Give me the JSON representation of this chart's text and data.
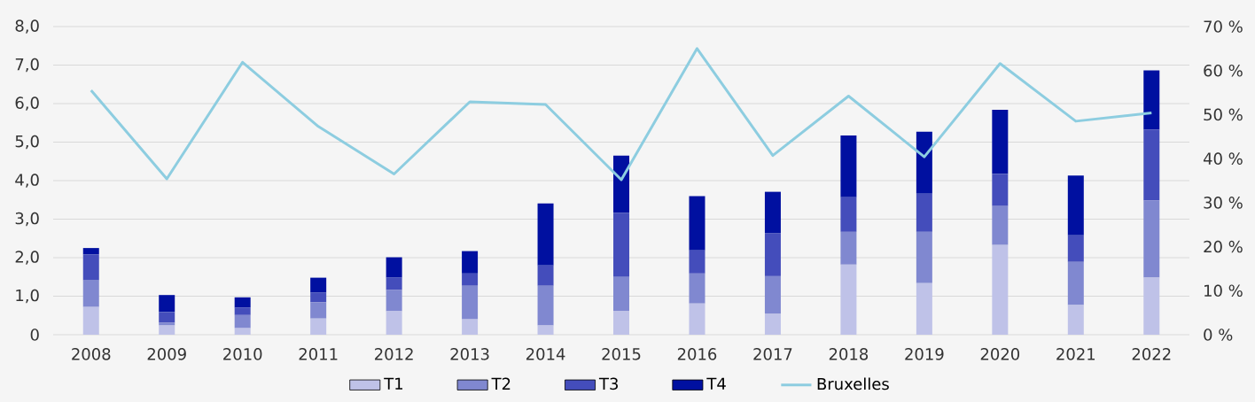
{
  "chart_data": {
    "type": "bar",
    "stacked": true,
    "categories": [
      "2008",
      "2009",
      "2010",
      "2011",
      "2012",
      "2013",
      "2014",
      "2015",
      "2016",
      "2017",
      "2018",
      "2019",
      "2020",
      "2021",
      "2022"
    ],
    "series": [
      {
        "name": "T1",
        "color": "#bfc2e8",
        "values": [
          0.72,
          0.24,
          0.17,
          0.42,
          0.61,
          0.4,
          0.24,
          0.61,
          0.81,
          0.54,
          1.82,
          1.34,
          2.33,
          0.77,
          1.48
        ]
      },
      {
        "name": "T2",
        "color": "#8088d0",
        "values": [
          0.69,
          0.07,
          0.34,
          0.42,
          0.55,
          0.87,
          1.03,
          0.89,
          0.78,
          0.98,
          0.85,
          1.33,
          1.01,
          1.12,
          2.0
        ]
      },
      {
        "name": "T3",
        "color": "#444dbb",
        "values": [
          0.67,
          0.28,
          0.19,
          0.25,
          0.32,
          0.32,
          0.53,
          1.66,
          0.6,
          1.11,
          0.9,
          0.99,
          0.83,
          0.69,
          1.84
        ]
      },
      {
        "name": "T4",
        "color": "#0010a0",
        "values": [
          0.17,
          0.44,
          0.27,
          0.39,
          0.53,
          0.58,
          1.61,
          1.49,
          1.41,
          1.08,
          1.6,
          1.61,
          1.67,
          1.55,
          1.54
        ]
      },
      {
        "name": "Bruxelles",
        "type": "line",
        "axis": "y2",
        "color": "#8dcde0",
        "values": [
          55.5,
          35.4,
          61.9,
          47.3,
          36.5,
          52.9,
          52.3,
          35.2,
          65.0,
          40.7,
          54.2,
          40.4,
          61.6,
          48.5,
          50.4
        ]
      }
    ],
    "ylim": [
      0,
      8
    ],
    "yticks": [
      0,
      {
        "value": 1,
        "label": "1,0"
      },
      {
        "value": 2,
        "label": "2,0"
      },
      {
        "value": 3,
        "label": "3,0"
      },
      {
        "value": 4,
        "label": "4,0"
      },
      {
        "value": 5,
        "label": "5,0"
      },
      {
        "value": 6,
        "label": "6,0"
      },
      {
        "value": 7,
        "label": "7,0"
      },
      {
        "value": 8,
        "label": "8,0"
      }
    ],
    "y2lim": [
      0,
      70
    ],
    "y2ticks": [
      {
        "value": 0,
        "label": "0 %"
      },
      {
        "value": 10,
        "label": "10 %"
      },
      {
        "value": 20,
        "label": "20 %"
      },
      {
        "value": 30,
        "label": "30 %"
      },
      {
        "value": 40,
        "label": "40 %"
      },
      {
        "value": 50,
        "label": "50 %"
      },
      {
        "value": 60,
        "label": "60 %"
      },
      {
        "value": 70,
        "label": "70 %"
      }
    ],
    "grid": "y",
    "legend": "bottom",
    "marker": "none",
    "line_style": "solid"
  }
}
